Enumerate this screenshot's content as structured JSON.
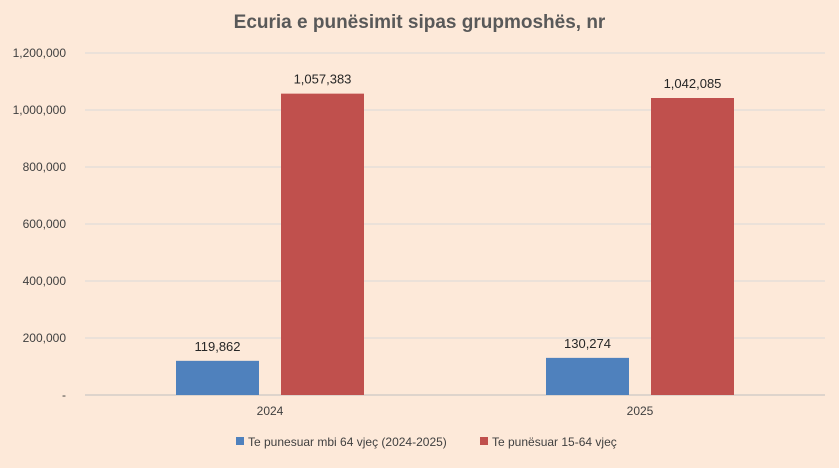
{
  "chart_data": {
    "type": "bar",
    "title": "Ecuria e punësimit sipas grupmoshës, nr",
    "xlabel": "",
    "ylabel": "",
    "categories": [
      "2024",
      "2025"
    ],
    "series": [
      {
        "name": "Te punesuar mbi 64 vjeç (2024-2025)",
        "values": [
          119862,
          130274
        ],
        "color": "#4f81bd"
      },
      {
        "name": "Te punësuar 15-64 vjeç",
        "values": [
          1057383,
          1042085
        ],
        "color": "#c0504d"
      }
    ],
    "ylim": [
      0,
      1200000
    ],
    "yticks": [
      0,
      200000,
      400000,
      600000,
      800000,
      1000000,
      1200000
    ],
    "ytick_labels": [
      "-",
      "200,000",
      "400,000",
      "600,000",
      "800,000",
      "1,000,000",
      "1,200,000"
    ],
    "data_labels": [
      [
        "119,862",
        "130,274"
      ],
      [
        "1,057,383",
        "1,042,085"
      ]
    ],
    "grid": true,
    "legend_position": "bottom",
    "colors": {
      "background": "#fde9d9",
      "grid": "#d9d9d9",
      "axis": "#bfbfbf"
    }
  }
}
